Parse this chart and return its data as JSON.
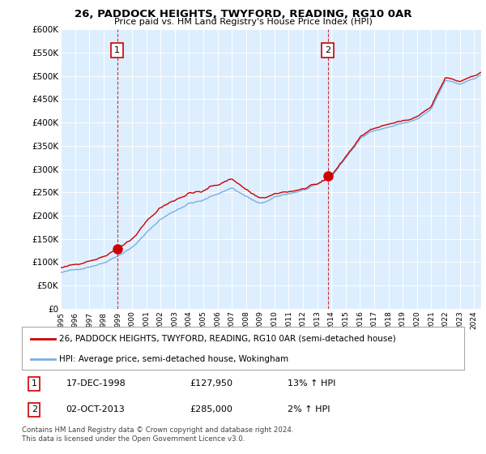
{
  "title": "26, PADDOCK HEIGHTS, TWYFORD, READING, RG10 0AR",
  "subtitle": "Price paid vs. HM Land Registry's House Price Index (HPI)",
  "ylabel_ticks": [
    "£0",
    "£50K",
    "£100K",
    "£150K",
    "£200K",
    "£250K",
    "£300K",
    "£350K",
    "£400K",
    "£450K",
    "£500K",
    "£550K",
    "£600K"
  ],
  "ytick_values": [
    0,
    50000,
    100000,
    150000,
    200000,
    250000,
    300000,
    350000,
    400000,
    450000,
    500000,
    550000,
    600000
  ],
  "ylim": [
    0,
    600000
  ],
  "hpi_color": "#7aafe0",
  "price_color": "#cc0000",
  "sale1_date": 1998.96,
  "sale1_price": 127950,
  "sale2_date": 2013.75,
  "sale2_price": 285000,
  "dashed_line_color": "#cc3333",
  "marker_color": "#cc0000",
  "shade_color": "#ddeeff",
  "legend_label_red": "26, PADDOCK HEIGHTS, TWYFORD, READING, RG10 0AR (semi-detached house)",
  "legend_label_blue": "HPI: Average price, semi-detached house, Wokingham",
  "table_row1_num": "1",
  "table_row1_date": "17-DEC-1998",
  "table_row1_price": "£127,950",
  "table_row1_hpi": "13% ↑ HPI",
  "table_row2_num": "2",
  "table_row2_date": "02-OCT-2013",
  "table_row2_price": "£285,000",
  "table_row2_hpi": "2% ↑ HPI",
  "footer": "Contains HM Land Registry data © Crown copyright and database right 2024.\nThis data is licensed under the Open Government Licence v3.0.",
  "background_color": "#ffffff",
  "plot_bg_color": "#ddeeff"
}
